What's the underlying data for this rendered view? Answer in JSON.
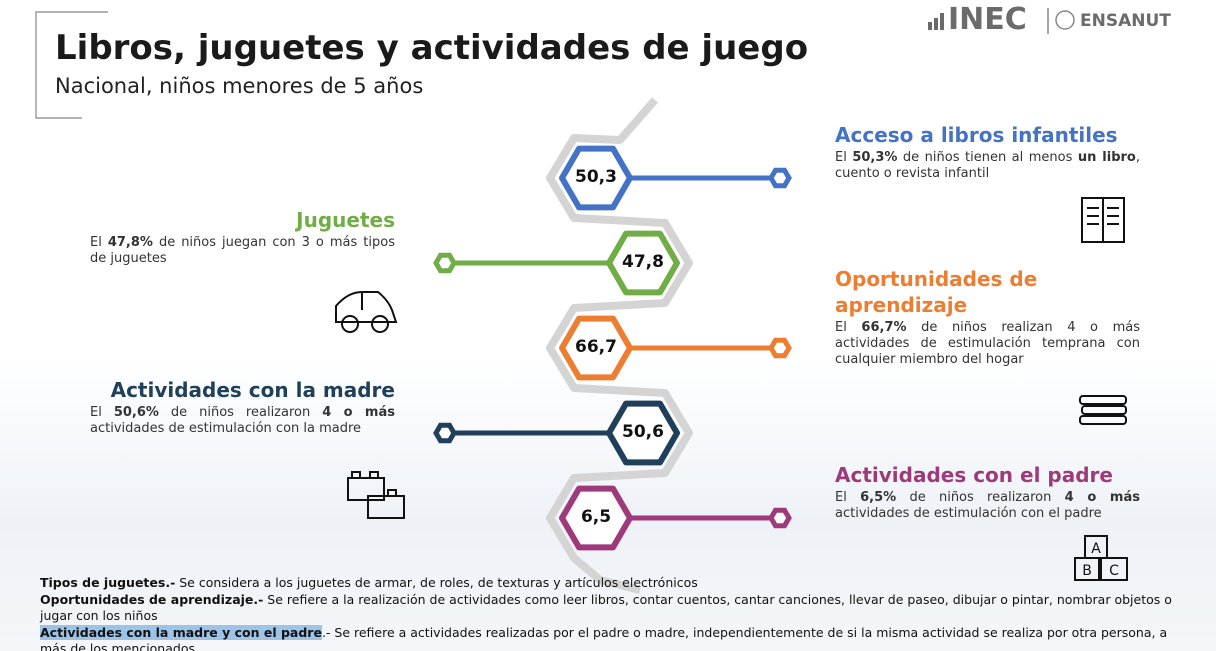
{
  "header": {
    "title": "Libros, juguetes  y actividades de juego",
    "subtitle": "Nacional, niños menores de 5 años",
    "logo": "INEC",
    "logo2": "ENSANUT"
  },
  "items": [
    {
      "value": "50,3",
      "title": "Acceso a libros infantiles",
      "color": "#4472c4",
      "description": [
        {
          "text": "El "
        },
        {
          "text": "50,3%",
          "bold": true
        },
        {
          "text": " de niños tienen al menos "
        },
        {
          "text": "un libro",
          "bold": true
        },
        {
          "text": ", cuento o revista infantil"
        }
      ]
    },
    {
      "value": "47,8",
      "title": "Juguetes",
      "color": "#70ad47",
      "description": [
        {
          "text": "El "
        },
        {
          "text": "47,8%",
          "bold": true
        },
        {
          "text": " de niños juegan con 3 o más tipos de juguetes"
        }
      ]
    },
    {
      "value": "66,7",
      "title": "Oportunidades de aprendizaje",
      "color": "#ed7d31",
      "description": [
        {
          "text": "El "
        },
        {
          "text": "66,7%",
          "bold": true
        },
        {
          "text": " de niños realizan 4 o más actividades de estimulación temprana con cualquier miembro del hogar"
        }
      ]
    },
    {
      "value": "50,6",
      "title": "Actividades con la madre",
      "color": "#1f3f5a",
      "description": [
        {
          "text": "El "
        },
        {
          "text": "50,6%",
          "bold": true
        },
        {
          "text": " de niños realizaron "
        },
        {
          "text": "4 o más",
          "bold": true
        },
        {
          "text": " actividades de estimulación con la madre"
        }
      ]
    },
    {
      "value": "6,5",
      "title": "Actividades con el padre",
      "color": "#9e3a7a",
      "description": [
        {
          "text": "El "
        },
        {
          "text": "6,5%",
          "bold": true
        },
        {
          "text": " de niños realizaron "
        },
        {
          "text": "4 o más",
          "bold": true
        },
        {
          "text": " actividades de estimulación con el padre"
        }
      ]
    }
  ],
  "notes": [
    {
      "term": "Tipos de juguetes.-",
      "text": " Se considera a los juguetes de armar, de roles, de texturas y artículos electrónicos"
    },
    {
      "term": "Oportunidades de aprendizaje.-",
      "text": " Se refiere a la realización de actividades como leer libros, contar cuentos, cantar canciones, llevar de paseo, dibujar o pintar, nombrar objetos o jugar con los niños"
    },
    {
      "term": "Actividades con la madre y con el padre",
      "text": ".- Se refiere a actividades realizadas por el padre o madre, independientemente de si la misma actividad se realiza por otra persona, a más de los mencionados",
      "highlight": true
    }
  ]
}
